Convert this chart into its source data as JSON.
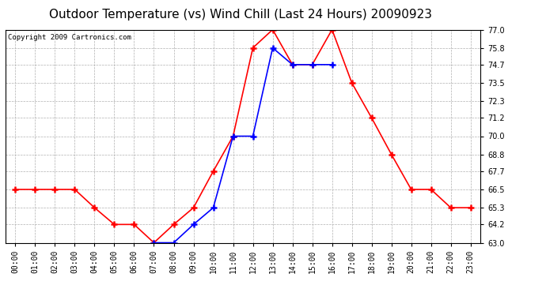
{
  "title": "Outdoor Temperature (vs) Wind Chill (Last 24 Hours) 20090923",
  "copyright": "Copyright 2009 Cartronics.com",
  "hours": [
    "00:00",
    "01:00",
    "02:00",
    "03:00",
    "04:00",
    "05:00",
    "06:00",
    "07:00",
    "08:00",
    "09:00",
    "10:00",
    "11:00",
    "12:00",
    "13:00",
    "14:00",
    "15:00",
    "16:00",
    "17:00",
    "18:00",
    "19:00",
    "20:00",
    "21:00",
    "22:00",
    "23:00"
  ],
  "temp": [
    66.5,
    66.5,
    66.5,
    66.5,
    65.3,
    64.2,
    64.2,
    63.0,
    64.2,
    65.3,
    67.7,
    70.0,
    75.8,
    77.0,
    74.7,
    74.7,
    77.0,
    73.5,
    71.2,
    68.8,
    66.5,
    66.5,
    65.3,
    65.3
  ],
  "windchill": [
    null,
    null,
    null,
    null,
    null,
    null,
    null,
    63.0,
    63.0,
    64.2,
    65.3,
    70.0,
    70.0,
    75.8,
    74.7,
    74.7,
    74.7,
    null,
    null,
    null,
    null,
    null,
    null,
    null
  ],
  "temp_color": "#ff0000",
  "windchill_color": "#0000ff",
  "background_color": "#ffffff",
  "plot_bg_color": "#ffffff",
  "grid_color": "#b0b0b0",
  "ylim": [
    63.0,
    77.0
  ],
  "yticks": [
    63.0,
    64.2,
    65.3,
    66.5,
    67.7,
    68.8,
    70.0,
    71.2,
    72.3,
    73.5,
    74.7,
    75.8,
    77.0
  ],
  "title_fontsize": 11,
  "copyright_fontsize": 6.5,
  "tick_fontsize": 7,
  "marker": "+",
  "markersize": 6,
  "markeredgewidth": 1.8,
  "linewidth": 1.2
}
